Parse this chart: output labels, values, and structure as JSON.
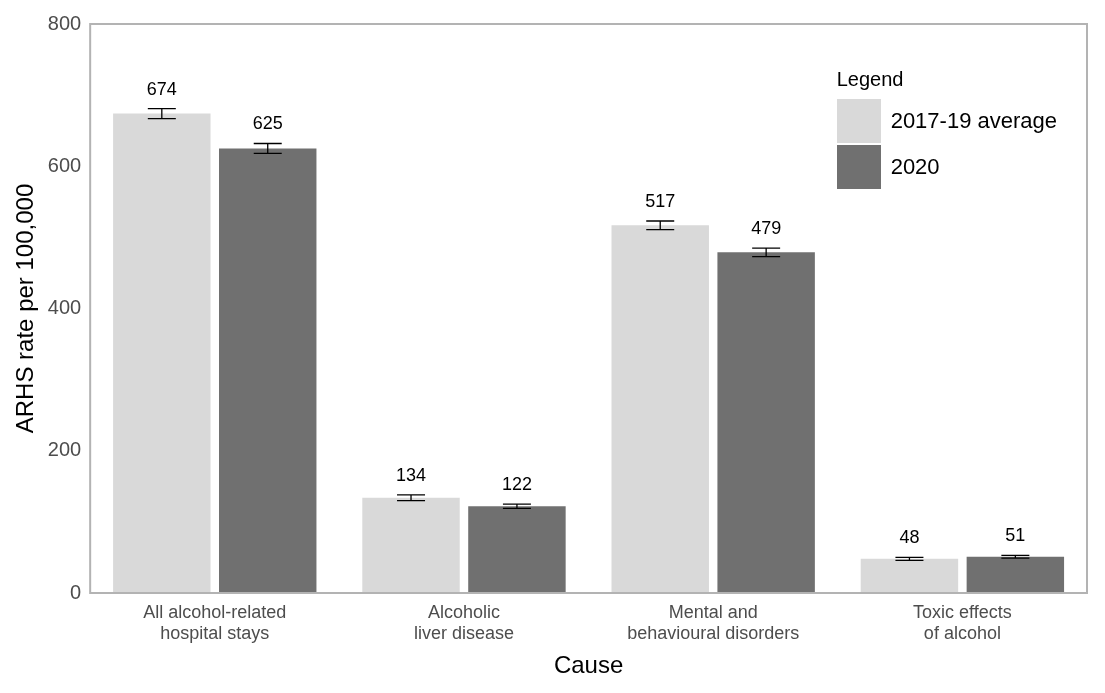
{
  "chart_data": {
    "type": "bar",
    "xlabel": "Cause",
    "ylabel": "ARHS rate per 100,000",
    "legend_title": "Legend",
    "categories": [
      "All alcohol-related\nhospital stays",
      "Alcoholic\nliver disease",
      "Mental and\nbehavioural disorders",
      "Toxic effects\nof alcohol"
    ],
    "series": [
      {
        "name": "2017-19 average",
        "color": "#d9d9d9",
        "values": [
          674,
          134,
          517,
          48
        ],
        "errors": [
          7,
          4,
          6,
          2
        ]
      },
      {
        "name": "2020",
        "color": "#707070",
        "values": [
          625,
          122,
          479,
          51
        ],
        "errors": [
          7,
          3,
          6,
          2
        ]
      }
    ],
    "ylim": [
      0,
      800
    ],
    "yticks": [
      0,
      200,
      400,
      600,
      800
    ],
    "data_labels": true,
    "legend": "top right",
    "grid": false
  }
}
